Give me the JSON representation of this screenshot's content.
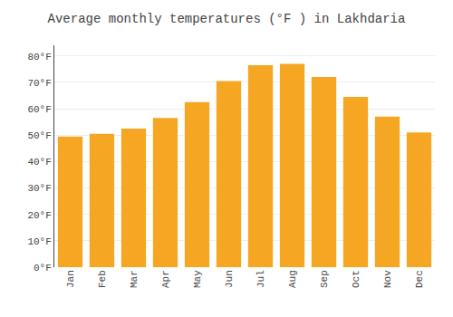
{
  "chart_data": {
    "type": "bar",
    "title": "Average monthly temperatures (°F ) in Lakhdaria",
    "categories": [
      "Jan",
      "Feb",
      "Mar",
      "Apr",
      "May",
      "Jun",
      "Jul",
      "Aug",
      "Sep",
      "Oct",
      "Nov",
      "Dec"
    ],
    "values": [
      49.5,
      50.5,
      52.5,
      56.5,
      62.5,
      70.5,
      76.5,
      77.0,
      72.0,
      64.5,
      57.0,
      51.0
    ],
    "color": "#F5A623",
    "ylim": [
      0,
      84
    ],
    "yticks": [
      {
        "value": 0,
        "label": "0°F"
      },
      {
        "value": 10,
        "label": "10°F"
      },
      {
        "value": 20,
        "label": "20°F"
      },
      {
        "value": 30,
        "label": "30°F"
      },
      {
        "value": 40,
        "label": "40°F"
      },
      {
        "value": 50,
        "label": "50°F"
      },
      {
        "value": 60,
        "label": "60°F"
      },
      {
        "value": 70,
        "label": "70°F"
      },
      {
        "value": 80,
        "label": "80°F"
      }
    ],
    "grid": true
  }
}
